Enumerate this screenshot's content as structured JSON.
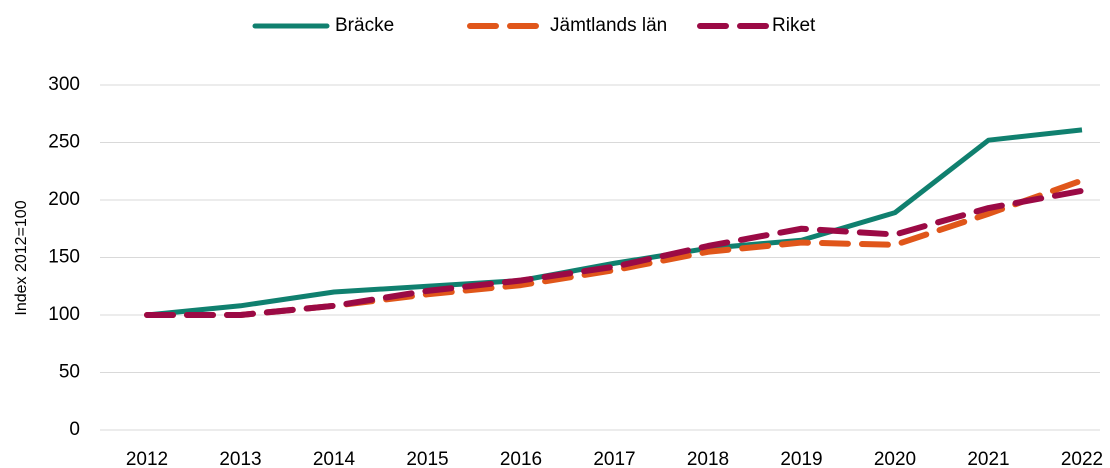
{
  "chart_data": {
    "type": "line",
    "y_label": "Index 2012=100",
    "categories": [
      "2012",
      "2013",
      "2014",
      "2015",
      "2016",
      "2017",
      "2018",
      "2019",
      "2020",
      "2021",
      "2022"
    ],
    "series": [
      {
        "name": "Bräcke",
        "color": "#10806f",
        "dash": "solid",
        "values": [
          100,
          108,
          120,
          125,
          130,
          145,
          158,
          165,
          189,
          252,
          261
        ]
      },
      {
        "name": "Jämtlands län",
        "color": "#e0561a",
        "dash": "dashed",
        "values": [
          100,
          100,
          108,
          118,
          126,
          139,
          155,
          163,
          161,
          188,
          217
        ]
      },
      {
        "name": "Riket",
        "color": "#9b0a45",
        "dash": "dashed",
        "values": [
          100,
          100,
          108,
          121,
          130,
          142,
          160,
          175,
          170,
          193,
          208
        ]
      }
    ],
    "ylim": [
      0,
      300
    ],
    "yticks": [
      0,
      50,
      100,
      150,
      200,
      250,
      300
    ],
    "grid": true,
    "legend": "top"
  }
}
